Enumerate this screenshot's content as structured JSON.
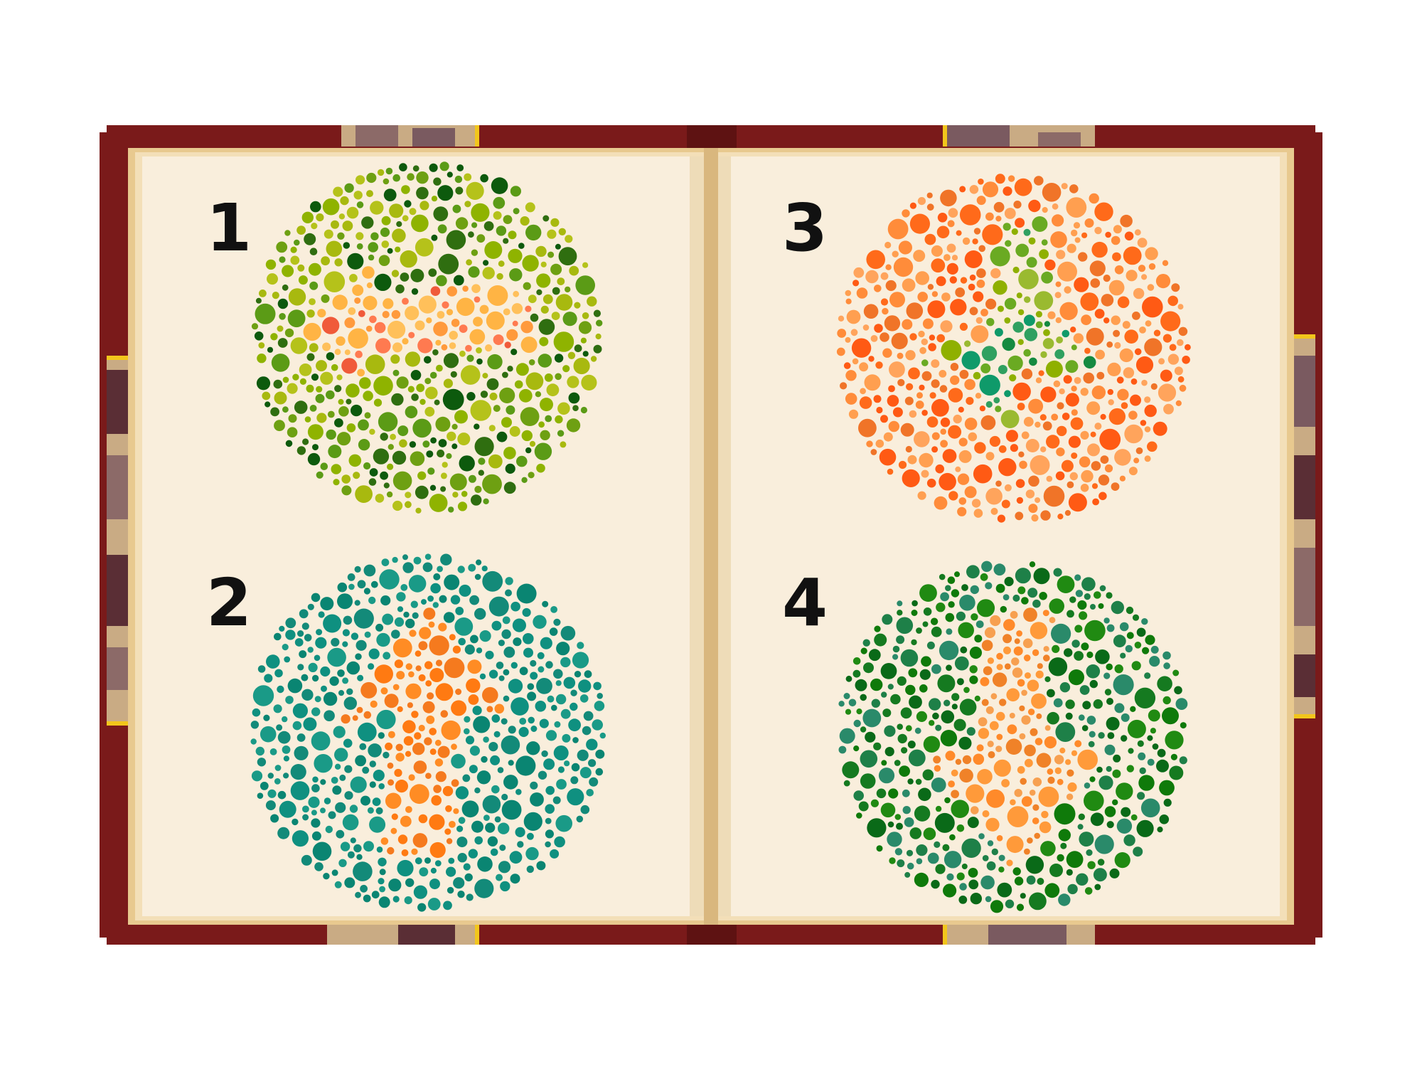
{
  "illustration": {
    "subject": "open-book",
    "colors": {
      "cover": "#7a1a1a",
      "cover_shadow": "#5e1212",
      "page": "#f9eedc",
      "page_edge": "#e8c98f",
      "corner_trim": "#f2c61c",
      "marbling_light": "#c9ab84",
      "marbling_dark": "#5a2e35"
    }
  },
  "plates": [
    {
      "number": "1",
      "symbol": "arrow-left",
      "background_colors": [
        "#8fb300",
        "#a8b90f",
        "#6ea012",
        "#5b9b16",
        "#2f6e10",
        "#0d5a0d",
        "#b5c21a"
      ],
      "figure_colors": [
        "#ffb444",
        "#ffc05a",
        "#ff9a3c",
        "#f05a3a",
        "#ff7a50"
      ]
    },
    {
      "number": "2",
      "symbol": "arrow-up",
      "background_colors": [
        "#0f9080",
        "#138a79",
        "#0a8572",
        "#1a9a87"
      ],
      "figure_colors": [
        "#ff7a12",
        "#f57a1e",
        "#ff8c24"
      ]
    },
    {
      "number": "3",
      "symbol": "lightning",
      "background_colors": [
        "#ff9f50",
        "#ff8c3a",
        "#ff6a1a",
        "#ff5a14",
        "#ffa45c",
        "#f07428"
      ],
      "figure_colors": [
        "#8fb000",
        "#9aba30",
        "#30a060",
        "#0f9a6a",
        "#158a40",
        "#6aaa22"
      ]
    },
    {
      "number": "4",
      "symbol": "lightning",
      "background_colors": [
        "#0f7a0a",
        "#208a12",
        "#0a6a18",
        "#1e8048",
        "#2a8a6a",
        "#157a20"
      ],
      "figure_colors": [
        "#ff8a2a",
        "#f7a050",
        "#ff9a3a",
        "#f08228"
      ]
    }
  ]
}
